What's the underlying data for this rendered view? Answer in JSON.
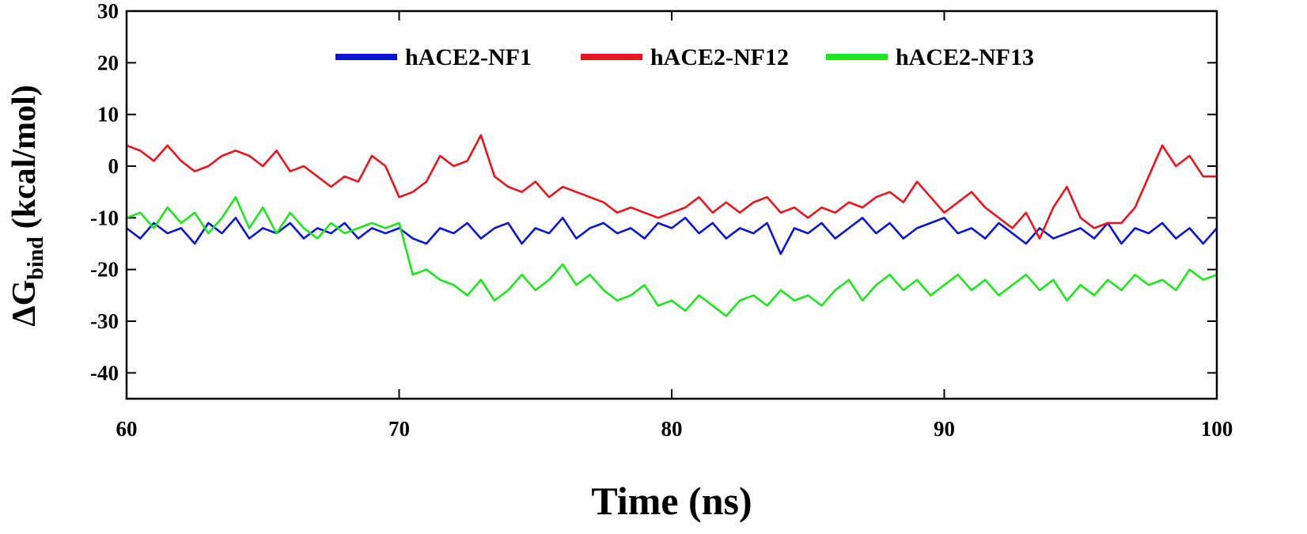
{
  "chart_data": {
    "type": "line",
    "xlabel": "Time (ns)",
    "ylabel": [
      "ΔG",
      "bind",
      "(kcal/mol)"
    ],
    "x": [
      60,
      60.5,
      61,
      61.5,
      62,
      62.5,
      63,
      63.5,
      64,
      64.5,
      65,
      65.5,
      66,
      66.5,
      67,
      67.5,
      68,
      68.5,
      69,
      69.5,
      70,
      70.5,
      71,
      71.5,
      72,
      72.5,
      73,
      73.5,
      74,
      74.5,
      75,
      75.5,
      76,
      76.5,
      77,
      77.5,
      78,
      78.5,
      79,
      79.5,
      80,
      80.5,
      81,
      81.5,
      82,
      82.5,
      83,
      83.5,
      84,
      84.5,
      85,
      85.5,
      86,
      86.5,
      87,
      87.5,
      88,
      88.5,
      89,
      89.5,
      90,
      90.5,
      91,
      91.5,
      92,
      92.5,
      93,
      93.5,
      94,
      94.5,
      95,
      95.5,
      96,
      96.5,
      97,
      97.5,
      98,
      98.5,
      99,
      99.5,
      100
    ],
    "series": [
      {
        "name": "hACE2-NF1",
        "color": "#0a14d2",
        "values": [
          -12,
          -14,
          -11,
          -13,
          -12,
          -15,
          -11,
          -13,
          -10,
          -14,
          -12,
          -13,
          -11,
          -14,
          -12,
          -13,
          -11,
          -14,
          -12,
          -13,
          -12,
          -14,
          -15,
          -12,
          -13,
          -11,
          -14,
          -12,
          -11,
          -15,
          -12,
          -13,
          -10,
          -14,
          -12,
          -11,
          -13,
          -12,
          -14,
          -11,
          -12,
          -10,
          -13,
          -11,
          -14,
          -12,
          -13,
          -11,
          -17,
          -12,
          -13,
          -11,
          -14,
          -12,
          -10,
          -13,
          -11,
          -14,
          -12,
          -11,
          -10,
          -13,
          -12,
          -14,
          -11,
          -13,
          -15,
          -12,
          -14,
          -13,
          -12,
          -14,
          -11,
          -15,
          -12,
          -13,
          -11,
          -14,
          -12,
          -15,
          -12
        ]
      },
      {
        "name": "hACE2-NF12",
        "color": "#e8141e",
        "values": [
          4,
          3,
          1,
          4,
          1,
          -1,
          0,
          2,
          3,
          2,
          0,
          3,
          -1,
          0,
          -2,
          -4,
          -2,
          -3,
          2,
          0,
          -6,
          -5,
          -3,
          2,
          0,
          1,
          6,
          -2,
          -4,
          -5,
          -3,
          -6,
          -4,
          -5,
          -6,
          -7,
          -9,
          -8,
          -9,
          -10,
          -9,
          -8,
          -6,
          -9,
          -7,
          -9,
          -7,
          -6,
          -9,
          -8,
          -10,
          -8,
          -9,
          -7,
          -8,
          -6,
          -5,
          -7,
          -3,
          -6,
          -9,
          -7,
          -5,
          -8,
          -10,
          -12,
          -9,
          -14,
          -8,
          -4,
          -10,
          -12,
          -11,
          -11,
          -8,
          -2,
          4,
          0,
          2,
          -2,
          -2
        ]
      },
      {
        "name": "hACE2-NF13",
        "color": "#1ee61e",
        "values": [
          -10,
          -9,
          -12,
          -8,
          -11,
          -9,
          -13,
          -10,
          -6,
          -12,
          -8,
          -13,
          -9,
          -12,
          -14,
          -11,
          -13,
          -12,
          -11,
          -12,
          -11,
          -21,
          -20,
          -22,
          -23,
          -25,
          -22,
          -26,
          -24,
          -21,
          -24,
          -22,
          -19,
          -23,
          -21,
          -24,
          -26,
          -25,
          -23,
          -27,
          -26,
          -28,
          -25,
          -27,
          -29,
          -26,
          -25,
          -27,
          -24,
          -26,
          -25,
          -27,
          -24,
          -22,
          -26,
          -23,
          -21,
          -24,
          -22,
          -25,
          -23,
          -21,
          -24,
          -22,
          -25,
          -23,
          -21,
          -24,
          -22,
          -26,
          -23,
          -25,
          -22,
          -24,
          -21,
          -23,
          -22,
          -24,
          -20,
          -22,
          -21
        ]
      }
    ],
    "xlim": [
      60,
      100
    ],
    "xticks": [
      60,
      70,
      80,
      90,
      100
    ],
    "ylim": [
      -45,
      30
    ],
    "yticks": [
      -40,
      -30,
      -20,
      -10,
      0,
      10,
      20,
      30
    ],
    "legend": "upper center"
  }
}
